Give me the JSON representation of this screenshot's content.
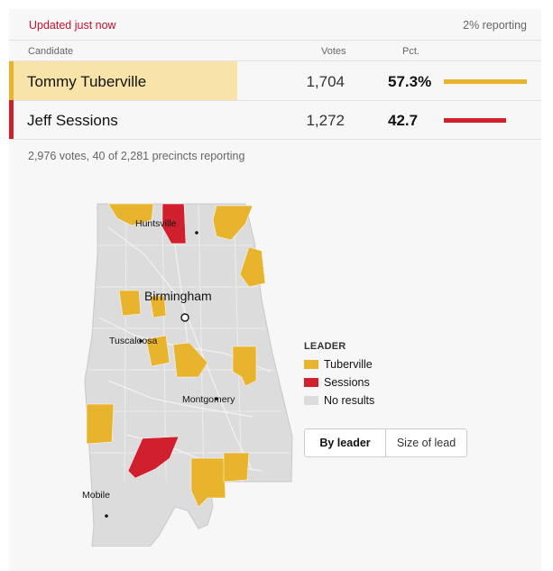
{
  "header": {
    "updated": "Updated just now",
    "reporting": "2% reporting"
  },
  "columns": {
    "candidate": "Candidate",
    "votes": "Votes",
    "pct": "Pct."
  },
  "candidates": [
    {
      "name": "Tommy Tuberville",
      "votes": "1,704",
      "pct": "57.3%",
      "pct_value": 57.3,
      "color": "#e9b42d",
      "highlight": "#f8e4a8"
    },
    {
      "name": "Jeff Sessions",
      "votes": "1,272",
      "pct": "42.7",
      "pct_value": 42.7,
      "color": "#d0202e",
      "highlight": ""
    }
  ],
  "summary": "2,976 votes, 40 of 2,281 precincts reporting",
  "map": {
    "cities": {
      "huntsville": "Huntsville",
      "birmingham": "Birmingham",
      "tuscaloosa": "Tuscaloosa",
      "montgomery": "Montgomery",
      "mobile": "Mobile"
    },
    "colors": {
      "tuberville": "#e9b42d",
      "sessions": "#d0202e",
      "no_results": "#dcdcdc"
    }
  },
  "legend": {
    "title": "LEADER",
    "items": [
      {
        "label": "Tuberville",
        "color": "#e9b42d"
      },
      {
        "label": "Sessions",
        "color": "#d0202e"
      },
      {
        "label": "No results",
        "color": "#dcdcdc"
      }
    ]
  },
  "toggle": {
    "options": [
      "By leader",
      "Size of lead"
    ],
    "selected": "By leader"
  }
}
